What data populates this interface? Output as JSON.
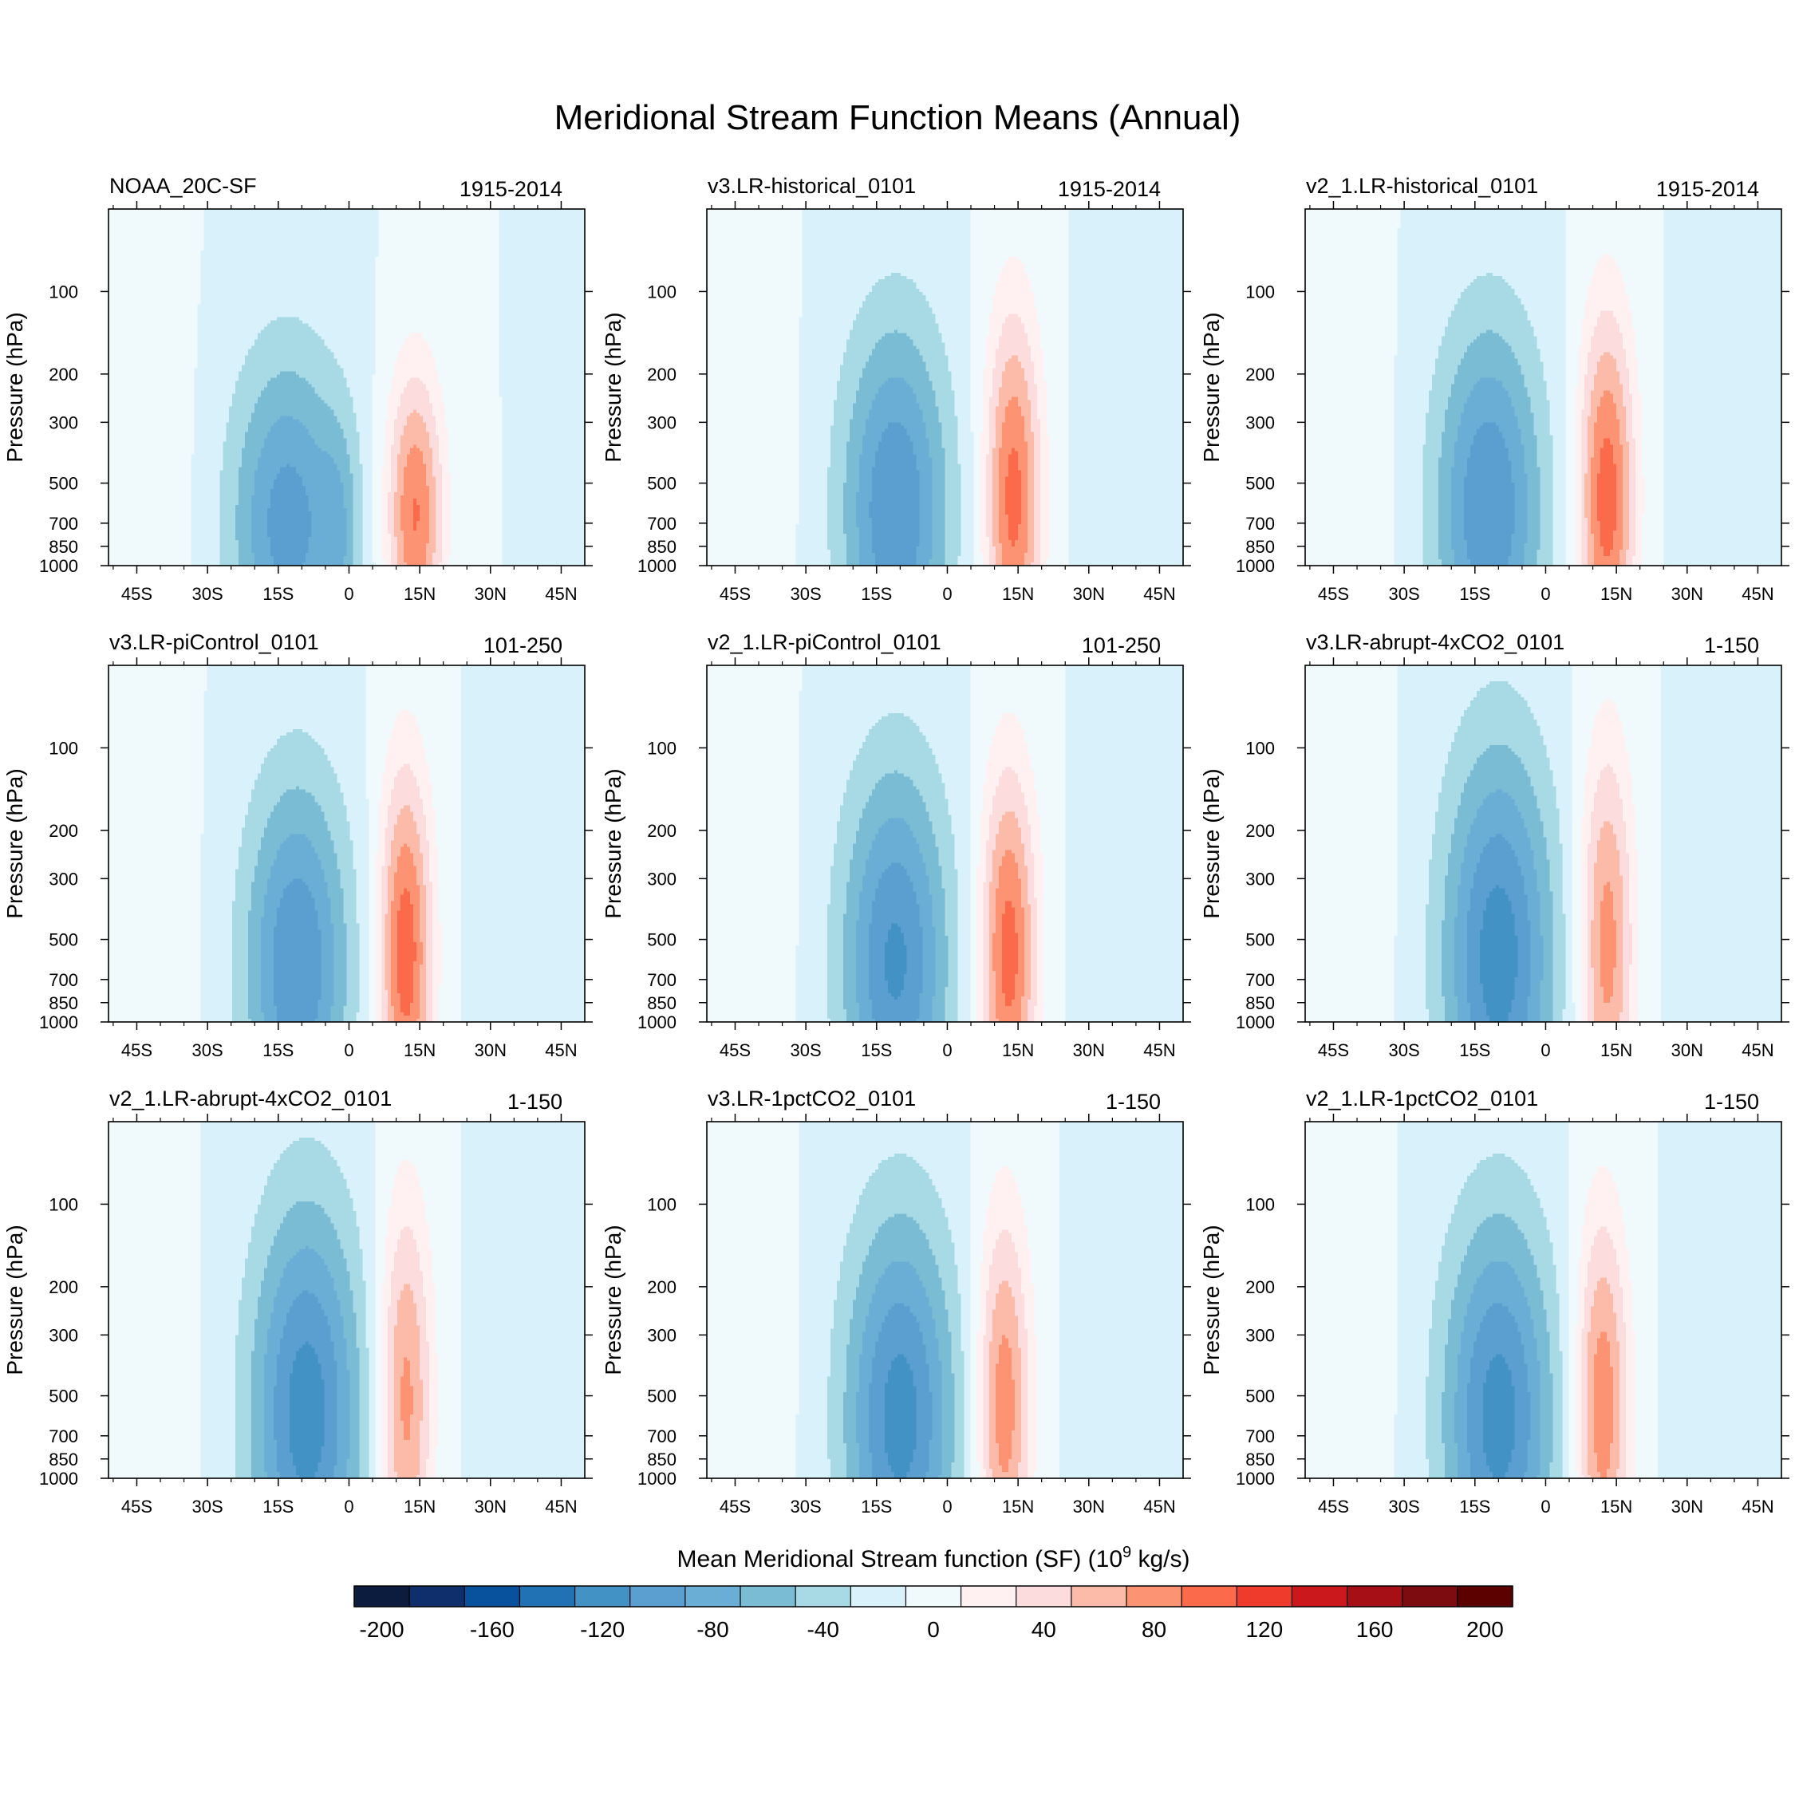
{
  "figure_title": "Meridional Stream Function Means (Annual)",
  "chart_data": {
    "type": "heatmap",
    "title": "Meridional Stream Function Means (Annual)",
    "ylabel": "Pressure (hPa)",
    "x_ticks": [
      "45S",
      "30S",
      "15S",
      "0",
      "15N",
      "30N",
      "45N"
    ],
    "x_tick_values": [
      -45,
      -30,
      -15,
      0,
      15,
      30,
      45
    ],
    "xlim": [
      -51,
      50
    ],
    "y_ticks": [
      "100",
      "200",
      "300",
      "500",
      "700",
      "850",
      "1000"
    ],
    "y_tick_values": [
      100,
      200,
      300,
      500,
      700,
      850,
      1000
    ],
    "ylim": [
      50,
      1000
    ],
    "colorbar": {
      "title": "Mean Meridional Stream function (SF) (10",
      "exp": "9",
      "unit": " kg/s)",
      "levels": [
        -200,
        -180,
        -160,
        -140,
        -120,
        -100,
        -80,
        -60,
        -40,
        -20,
        0,
        20,
        40,
        60,
        80,
        100,
        120,
        140,
        160,
        180,
        200
      ],
      "labels": [
        "-200",
        "-160",
        "-120",
        "-80",
        "-40",
        "0",
        "40",
        "80",
        "120",
        "160",
        "200"
      ],
      "label_values": [
        -200,
        -160,
        -120,
        -80,
        -40,
        0,
        40,
        80,
        120,
        160,
        200
      ],
      "colors": [
        "#0b1c3f",
        "#0e2f6b",
        "#08519c",
        "#2171b5",
        "#4292c6",
        "#5b9fd0",
        "#6aaed6",
        "#7bbcd5",
        "#a8dae5",
        "#d8f1fb",
        "#f0fafd",
        "#fff0f2",
        "#fddcdd",
        "#fcbba8",
        "#fc9473",
        "#fb6a4a",
        "#ef3b2c",
        "#cb181d",
        "#a50f15",
        "#7c0c10",
        "#5c0000"
      ]
    },
    "panels": [
      {
        "name": "NOAA_20C-SF",
        "period": "1915-2014",
        "cells": [
          {
            "lat": -13,
            "p": 700,
            "lat_sd": 8.5,
            "p_sd": 1.0,
            "amp": -90
          },
          {
            "lat": -2,
            "p": 780,
            "lat_sd": 3,
            "p_sd": 0.7,
            "amp": -32
          },
          {
            "lat": 14,
            "p": 650,
            "lat_sd": 4.2,
            "p_sd": 0.85,
            "amp": 102
          },
          {
            "lat": -43,
            "p": 500,
            "lat_sd": 6,
            "p_sd": 1.2,
            "amp": 18
          },
          {
            "lat": 48,
            "p": 500,
            "lat_sd": 4,
            "p_sd": 0.9,
            "amp": -16
          }
        ]
      },
      {
        "name": "v3.LR-historical_0101",
        "period": "1915-2014",
        "cells": [
          {
            "lat": -11,
            "p": 620,
            "lat_sd": 8.0,
            "p_sd": 1.1,
            "amp": -100
          },
          {
            "lat": 14,
            "p": 560,
            "lat_sd": 4.2,
            "p_sd": 1.1,
            "amp": 108
          },
          {
            "lat": -43,
            "p": 500,
            "lat_sd": 6,
            "p_sd": 1.2,
            "amp": 20
          },
          {
            "lat": 40,
            "p": 600,
            "lat_sd": 8,
            "p_sd": 1.2,
            "amp": -10
          }
        ]
      },
      {
        "name": "v2_1.LR-historical_0101",
        "period": "1915-2014",
        "cells": [
          {
            "lat": -12,
            "p": 620,
            "lat_sd": 8.0,
            "p_sd": 1.1,
            "amp": -100
          },
          {
            "lat": 13,
            "p": 560,
            "lat_sd": 4.2,
            "p_sd": 1.1,
            "amp": 112
          },
          {
            "lat": -43,
            "p": 500,
            "lat_sd": 6,
            "p_sd": 1.2,
            "amp": 20
          },
          {
            "lat": 40,
            "p": 600,
            "lat_sd": 8,
            "p_sd": 1.2,
            "amp": -10
          }
        ]
      },
      {
        "name": "v3.LR-piControl_0101",
        "period": "101-250",
        "cells": [
          {
            "lat": -11,
            "p": 620,
            "lat_sd": 7.8,
            "p_sd": 1.1,
            "amp": -100
          },
          {
            "lat": 12,
            "p": 560,
            "lat_sd": 4.0,
            "p_sd": 1.1,
            "amp": 114
          },
          {
            "lat": -43,
            "p": 500,
            "lat_sd": 6,
            "p_sd": 1.2,
            "amp": 20
          },
          {
            "lat": 40,
            "p": 600,
            "lat_sd": 8,
            "p_sd": 1.2,
            "amp": -10
          }
        ]
      },
      {
        "name": "v2_1.LR-piControl_0101",
        "period": "101-250",
        "cells": [
          {
            "lat": -11,
            "p": 600,
            "lat_sd": 8.0,
            "p_sd": 1.15,
            "amp": -104
          },
          {
            "lat": 13,
            "p": 560,
            "lat_sd": 4.2,
            "p_sd": 1.1,
            "amp": 110
          },
          {
            "lat": -43,
            "p": 500,
            "lat_sd": 6,
            "p_sd": 1.2,
            "amp": 20
          },
          {
            "lat": 40,
            "p": 600,
            "lat_sd": 8,
            "p_sd": 1.2,
            "amp": -10
          }
        ]
      },
      {
        "name": "v3.LR-abrupt-4xCO2_0101",
        "period": "1-150",
        "cells": [
          {
            "lat": -10,
            "p": 580,
            "lat_sd": 8.3,
            "p_sd": 1.25,
            "amp": -112
          },
          {
            "lat": 13,
            "p": 520,
            "lat_sd": 4.0,
            "p_sd": 1.2,
            "amp": 90
          },
          {
            "lat": -43,
            "p": 500,
            "lat_sd": 6,
            "p_sd": 1.2,
            "amp": 20
          },
          {
            "lat": 40,
            "p": 600,
            "lat_sd": 8,
            "p_sd": 1.2,
            "amp": -10
          }
        ]
      },
      {
        "name": "v2_1.LR-abrupt-4xCO2_0101",
        "period": "1-150",
        "cells": [
          {
            "lat": -9,
            "p": 580,
            "lat_sd": 8.3,
            "p_sd": 1.25,
            "amp": -112
          },
          {
            "lat": 12,
            "p": 520,
            "lat_sd": 4.0,
            "p_sd": 1.2,
            "amp": 88
          },
          {
            "lat": -43,
            "p": 500,
            "lat_sd": 6,
            "p_sd": 1.2,
            "amp": 20
          },
          {
            "lat": 40,
            "p": 600,
            "lat_sd": 8,
            "p_sd": 1.2,
            "amp": -10
          }
        ]
      },
      {
        "name": "v3.LR-1pctCO2_0101",
        "period": "1-150",
        "cells": [
          {
            "lat": -10,
            "p": 600,
            "lat_sd": 8.3,
            "p_sd": 1.2,
            "amp": -110
          },
          {
            "lat": 12,
            "p": 540,
            "lat_sd": 4.0,
            "p_sd": 1.15,
            "amp": 94
          },
          {
            "lat": -43,
            "p": 500,
            "lat_sd": 6,
            "p_sd": 1.2,
            "amp": 20
          },
          {
            "lat": 40,
            "p": 600,
            "lat_sd": 8,
            "p_sd": 1.2,
            "amp": -10
          }
        ]
      },
      {
        "name": "v2_1.LR-1pctCO2_0101",
        "period": "1-150",
        "cells": [
          {
            "lat": -10,
            "p": 600,
            "lat_sd": 8.3,
            "p_sd": 1.2,
            "amp": -110
          },
          {
            "lat": 12,
            "p": 540,
            "lat_sd": 4.0,
            "p_sd": 1.15,
            "amp": 96
          },
          {
            "lat": -43,
            "p": 500,
            "lat_sd": 6,
            "p_sd": 1.2,
            "amp": 20
          },
          {
            "lat": 40,
            "p": 600,
            "lat_sd": 8,
            "p_sd": 1.2,
            "amp": -10
          }
        ]
      }
    ]
  }
}
